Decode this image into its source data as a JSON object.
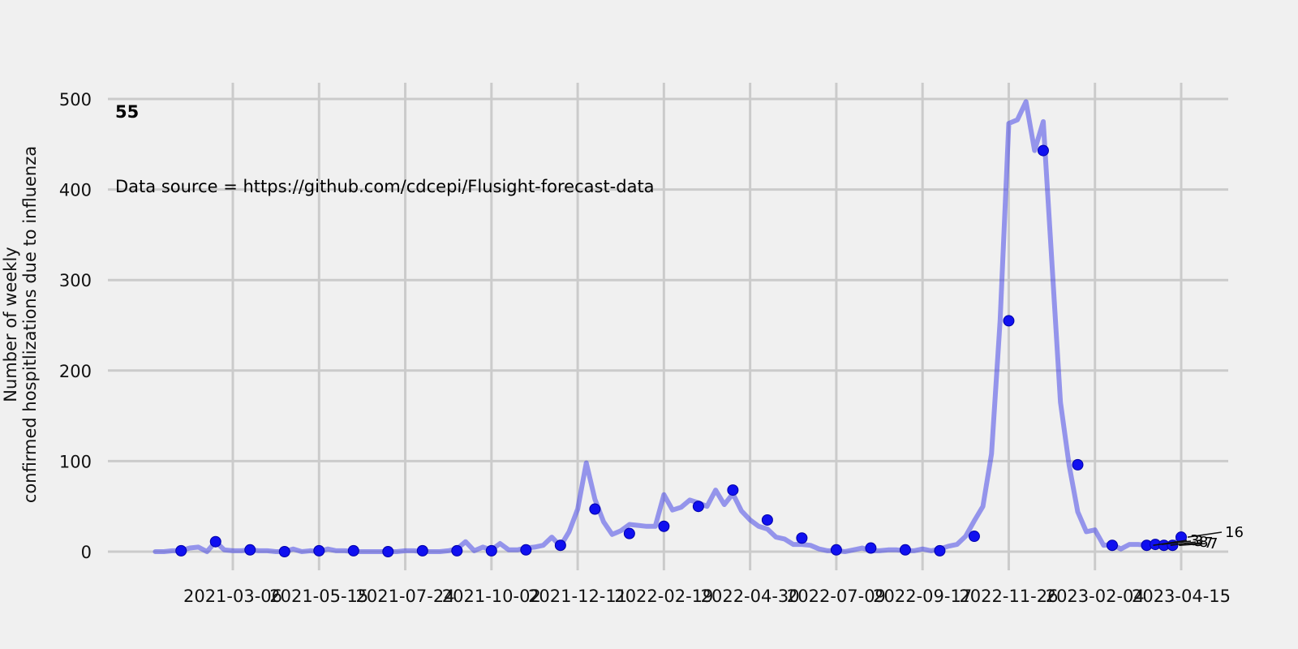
{
  "chart_data": {
    "type": "line",
    "title": "",
    "xlabel": "",
    "ylabel": "Number of weekly\nconfirmed hospitlizations due to influenza",
    "ylim": [
      0,
      500
    ],
    "yticks": [
      0,
      100,
      200,
      300,
      400,
      500
    ],
    "xticks": [
      "2021-03-06",
      "2021-05-15",
      "2021-07-24",
      "2021-10-02",
      "2021-12-11",
      "2022-02-19",
      "2022-04-30",
      "2022-07-09",
      "2022-09-17",
      "2022-11-26",
      "2023-02-04",
      "2023-04-15"
    ],
    "grid": true,
    "line_color": "#4848e8",
    "marker_color": "#1010f0",
    "annotations": {
      "location_label": "55",
      "source": "Data source = https://github.com/cdcepi/Flusight-forecast-data",
      "forecast_labels": [
        "16",
        "3",
        "3",
        "8",
        "7",
        "7"
      ]
    },
    "series": [
      {
        "values": [
          [
            "2021-01-02",
            0
          ],
          [
            "2021-01-09",
            0
          ],
          [
            "2021-01-16",
            1
          ],
          [
            "2021-01-23",
            1
          ],
          [
            "2021-01-30",
            4
          ],
          [
            "2021-02-06",
            5
          ],
          [
            "2021-02-13",
            0
          ],
          [
            "2021-02-20",
            11
          ],
          [
            "2021-02-27",
            2
          ],
          [
            "2021-03-06",
            1
          ],
          [
            "2021-03-13",
            1
          ],
          [
            "2021-03-20",
            2
          ],
          [
            "2021-03-27",
            1
          ],
          [
            "2021-04-03",
            1
          ],
          [
            "2021-04-10",
            0
          ],
          [
            "2021-04-17",
            0
          ],
          [
            "2021-04-24",
            3
          ],
          [
            "2021-05-01",
            0
          ],
          [
            "2021-05-08",
            1
          ],
          [
            "2021-05-15",
            0
          ],
          [
            "2021-05-22",
            3
          ],
          [
            "2021-05-29",
            1
          ],
          [
            "2021-06-05",
            1
          ],
          [
            "2021-06-12",
            0
          ],
          [
            "2021-06-19",
            0
          ],
          [
            "2021-06-26",
            0
          ],
          [
            "2021-07-03",
            0
          ],
          [
            "2021-07-10",
            0
          ],
          [
            "2021-07-17",
            0
          ],
          [
            "2021-07-24",
            1
          ],
          [
            "2021-07-31",
            1
          ],
          [
            "2021-08-07",
            0
          ],
          [
            "2021-08-14",
            0
          ],
          [
            "2021-08-21",
            0
          ],
          [
            "2021-08-28",
            1
          ],
          [
            "2021-09-04",
            3
          ],
          [
            "2021-09-11",
            11
          ],
          [
            "2021-09-18",
            1
          ],
          [
            "2021-09-25",
            5
          ],
          [
            "2021-10-02",
            2
          ],
          [
            "2021-10-09",
            9
          ],
          [
            "2021-10-16",
            2
          ],
          [
            "2021-10-23",
            2
          ],
          [
            "2021-10-30",
            4
          ],
          [
            "2021-11-06",
            5
          ],
          [
            "2021-11-13",
            7
          ],
          [
            "2021-11-20",
            16
          ],
          [
            "2021-11-27",
            6
          ],
          [
            "2021-12-04",
            22
          ],
          [
            "2021-12-11",
            47
          ],
          [
            "2021-12-18",
            98
          ],
          [
            "2021-12-25",
            58
          ],
          [
            "2022-01-01",
            33
          ],
          [
            "2022-01-08",
            19
          ],
          [
            "2022-01-15",
            23
          ],
          [
            "2022-01-22",
            30
          ],
          [
            "2022-01-29",
            29
          ],
          [
            "2022-02-05",
            28
          ],
          [
            "2022-02-12",
            28
          ],
          [
            "2022-02-19",
            63
          ],
          [
            "2022-02-26",
            46
          ],
          [
            "2022-03-05",
            49
          ],
          [
            "2022-03-12",
            57
          ],
          [
            "2022-03-19",
            54
          ],
          [
            "2022-03-26",
            50
          ],
          [
            "2022-04-02",
            68
          ],
          [
            "2022-04-09",
            52
          ],
          [
            "2022-04-16",
            64
          ],
          [
            "2022-04-23",
            45
          ],
          [
            "2022-04-30",
            35
          ],
          [
            "2022-05-07",
            28
          ],
          [
            "2022-05-14",
            25
          ],
          [
            "2022-05-21",
            16
          ],
          [
            "2022-05-28",
            14
          ],
          [
            "2022-06-04",
            8
          ],
          [
            "2022-06-11",
            8
          ],
          [
            "2022-06-18",
            7
          ],
          [
            "2022-06-25",
            3
          ],
          [
            "2022-07-02",
            1
          ],
          [
            "2022-07-09",
            1
          ],
          [
            "2022-07-16",
            0
          ],
          [
            "2022-07-23",
            2
          ],
          [
            "2022-07-30",
            4
          ],
          [
            "2022-08-06",
            1
          ],
          [
            "2022-08-13",
            1
          ],
          [
            "2022-08-20",
            2
          ],
          [
            "2022-08-27",
            2
          ],
          [
            "2022-09-03",
            1
          ],
          [
            "2022-09-10",
            1
          ],
          [
            "2022-09-17",
            3
          ],
          [
            "2022-09-24",
            1
          ],
          [
            "2022-10-01",
            3
          ],
          [
            "2022-10-08",
            6
          ],
          [
            "2022-10-15",
            8
          ],
          [
            "2022-10-22",
            17
          ],
          [
            "2022-10-29",
            34
          ],
          [
            "2022-11-05",
            50
          ],
          [
            "2022-11-12",
            108
          ],
          [
            "2022-11-19",
            255
          ],
          [
            "2022-11-26",
            473
          ],
          [
            "2022-12-03",
            477
          ],
          [
            "2022-12-10",
            497
          ],
          [
            "2022-12-17",
            443
          ],
          [
            "2022-12-24",
            475
          ],
          [
            "2022-12-31",
            320
          ],
          [
            "2023-01-07",
            165
          ],
          [
            "2023-01-14",
            96
          ],
          [
            "2023-01-21",
            44
          ],
          [
            "2023-01-28",
            22
          ],
          [
            "2023-02-04",
            24
          ],
          [
            "2023-02-11",
            7
          ],
          [
            "2023-02-18",
            8
          ],
          [
            "2023-02-25",
            3
          ],
          [
            "2023-03-04",
            8
          ],
          [
            "2023-03-11",
            8
          ],
          [
            "2023-03-18",
            7
          ],
          [
            "2023-03-25",
            8
          ],
          [
            "2023-04-01",
            7
          ],
          [
            "2023-04-08",
            7
          ],
          [
            "2023-04-15",
            16
          ]
        ],
        "markers": [
          [
            "2021-01-23",
            1
          ],
          [
            "2021-02-20",
            11
          ],
          [
            "2021-03-20",
            2
          ],
          [
            "2021-04-17",
            0
          ],
          [
            "2021-05-15",
            1
          ],
          [
            "2021-06-12",
            1
          ],
          [
            "2021-07-10",
            0
          ],
          [
            "2021-08-07",
            1
          ],
          [
            "2021-09-04",
            1
          ],
          [
            "2021-10-02",
            1
          ],
          [
            "2021-10-30",
            2
          ],
          [
            "2021-11-27",
            7
          ],
          [
            "2021-12-25",
            47
          ],
          [
            "2022-01-22",
            20
          ],
          [
            "2022-02-19",
            28
          ],
          [
            "2022-03-19",
            50
          ],
          [
            "2022-04-16",
            68
          ],
          [
            "2022-05-14",
            35
          ],
          [
            "2022-06-11",
            15
          ],
          [
            "2022-07-09",
            2
          ],
          [
            "2022-08-06",
            4
          ],
          [
            "2022-09-03",
            2
          ],
          [
            "2022-10-01",
            1
          ],
          [
            "2022-10-29",
            17
          ],
          [
            "2022-11-26",
            255
          ],
          [
            "2022-12-24",
            443
          ],
          [
            "2023-01-21",
            96
          ],
          [
            "2023-02-18",
            7
          ],
          [
            "2023-03-18",
            7
          ],
          [
            "2023-03-25",
            8
          ],
          [
            "2023-04-01",
            7
          ],
          [
            "2023-04-08",
            7
          ],
          [
            "2023-04-15",
            16
          ]
        ]
      }
    ]
  }
}
